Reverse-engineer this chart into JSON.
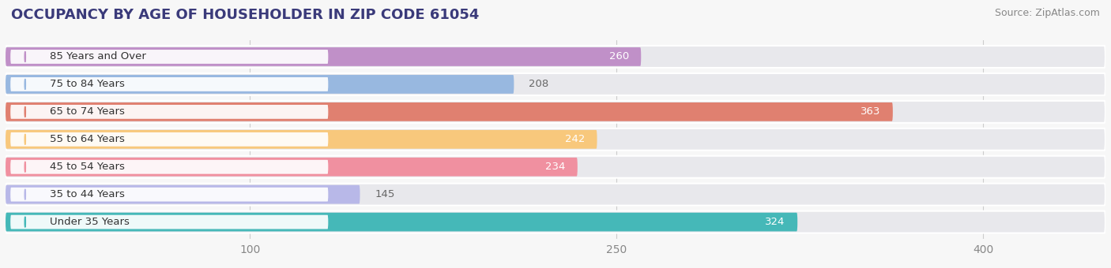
{
  "title": "OCCUPANCY BY AGE OF HOUSEHOLDER IN ZIP CODE 61054",
  "source": "Source: ZipAtlas.com",
  "categories": [
    "Under 35 Years",
    "35 to 44 Years",
    "45 to 54 Years",
    "55 to 64 Years",
    "65 to 74 Years",
    "75 to 84 Years",
    "85 Years and Over"
  ],
  "values": [
    324,
    145,
    234,
    242,
    363,
    208,
    260
  ],
  "bar_colors": [
    "#45b8b8",
    "#b8b8e8",
    "#f090a0",
    "#f8c87c",
    "#e08070",
    "#98b8e0",
    "#c090c8"
  ],
  "xlim_data": 430,
  "xlim_display": 450,
  "xticks": [
    100,
    250,
    400
  ],
  "background_color": "#f7f7f7",
  "track_color": "#e8e8ec",
  "label_color_inside": "#ffffff",
  "label_color_outside": "#666666",
  "title_fontsize": 13,
  "source_fontsize": 9,
  "label_fontsize": 9.5,
  "tick_fontsize": 10,
  "category_fontsize": 9.5,
  "title_color": "#3a3a7a",
  "source_color": "#888888"
}
